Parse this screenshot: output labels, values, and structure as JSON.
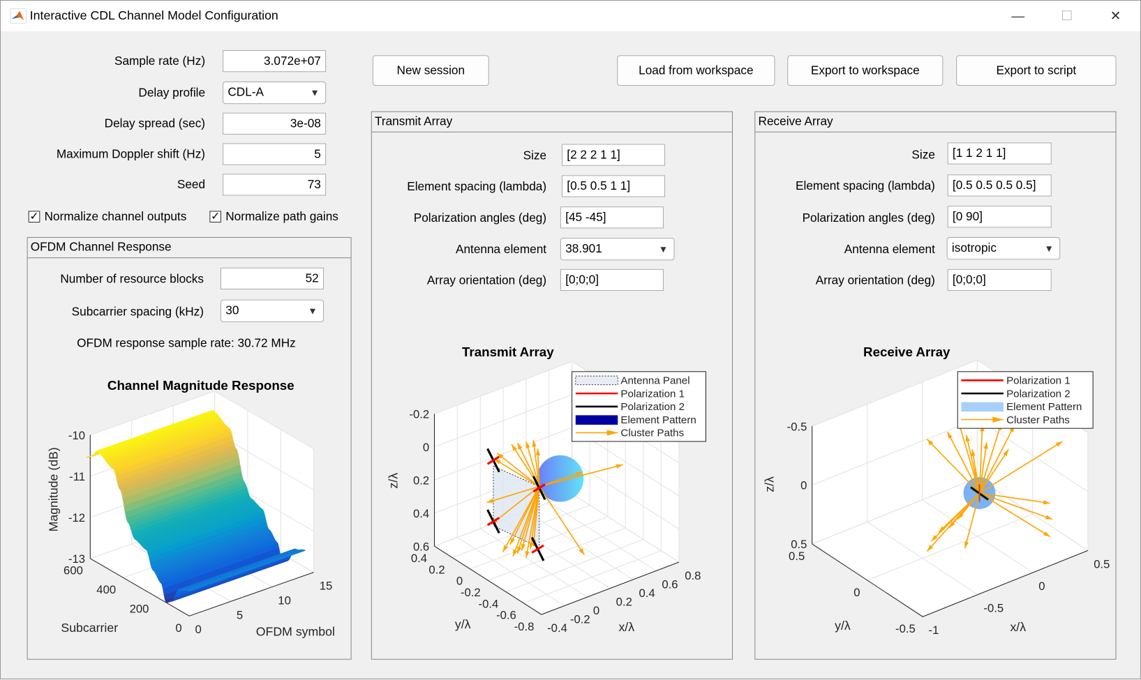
{
  "window": {
    "title": "Interactive CDL Channel Model Configuration",
    "minimize": "—",
    "maximize": "☐",
    "close": "✕"
  },
  "params": {
    "sample_rate": {
      "label": "Sample rate (Hz)",
      "value": "3.072e+07"
    },
    "delay_profile": {
      "label": "Delay profile",
      "value": "CDL-A"
    },
    "delay_spread": {
      "label": "Delay spread (sec)",
      "value": "3e-08"
    },
    "doppler": {
      "label": "Maximum Doppler shift (Hz)",
      "value": "5"
    },
    "seed": {
      "label": "Seed",
      "value": "73"
    },
    "normalize_outputs": {
      "label": "Normalize channel outputs",
      "checked": true
    },
    "normalize_gains": {
      "label": "Normalize path gains",
      "checked": true
    }
  },
  "buttons": {
    "new_session": "New session",
    "load": "Load from workspace",
    "export_ws": "Export to workspace",
    "export_script": "Export to script"
  },
  "ofdm": {
    "title": "OFDM Channel Response",
    "nrb": {
      "label": "Number of resource blocks",
      "value": "52"
    },
    "scs": {
      "label": "Subcarrier spacing (kHz)",
      "value": "30"
    },
    "rate_text": "OFDM response sample rate: 30.72 MHz"
  },
  "tx": {
    "title": "Transmit Array",
    "size": {
      "label": "Size",
      "value": "[2 2 2 1 1]"
    },
    "spacing": {
      "label": "Element spacing (lambda)",
      "value": "[0.5 0.5 1 1]"
    },
    "pol": {
      "label": "Polarization angles (deg)",
      "value": "[45 -45]"
    },
    "element": {
      "label": "Antenna element",
      "value": "38.901"
    },
    "orient": {
      "label": "Array orientation (deg)",
      "value": "[0;0;0]"
    }
  },
  "rx": {
    "title": "Receive Array",
    "size": {
      "label": "Size",
      "value": "[1 1 2 1 1]"
    },
    "spacing": {
      "label": "Element spacing (lambda)",
      "value": "[0.5 0.5 0.5 0.5]"
    },
    "pol": {
      "label": "Polarization angles (deg)",
      "value": "[0 90]"
    },
    "element": {
      "label": "Antenna element",
      "value": "isotropic"
    },
    "orient": {
      "label": "Array orientation (deg)",
      "value": "[0;0;0]"
    }
  },
  "chart_data": [
    {
      "type": "surface",
      "title": "Channel Magnitude Response",
      "xlabel": "OFDM symbol",
      "ylabel": "Subcarrier",
      "zlabel": "Magnitude (dB)",
      "xticks": [
        "0",
        "5",
        "10",
        "15"
      ],
      "yticks": [
        "0",
        "200",
        "400",
        "600"
      ],
      "zticks": [
        "-10",
        "-11",
        "-12",
        "-13"
      ],
      "xlim": [
        0,
        15
      ],
      "ylim": [
        0,
        624
      ],
      "zlim": [
        -13,
        -10
      ],
      "colormap": "parula",
      "profile_subcarrier": [
        0,
        60,
        110,
        140,
        170,
        220,
        260,
        330,
        370,
        420,
        460,
        560,
        590,
        624
      ],
      "profile_magnitude": [
        -12.4,
        -12.5,
        -12.9,
        -13.0,
        -12.6,
        -12.4,
        -12.0,
        -11.9,
        -11.6,
        -10.9,
        -10.5,
        -10.3,
        -10.5,
        -10.6
      ]
    },
    {
      "type": "3d-array",
      "title": "Transmit Array",
      "xlabel": "x/λ",
      "ylabel": "y/λ",
      "zlabel": "z/λ",
      "xticks": [
        "-0.4",
        "-0.2",
        "0",
        "0.2",
        "0.4",
        "0.6",
        "0.8"
      ],
      "yticks": [
        "0.4",
        "0.2",
        "0",
        "-0.2",
        "-0.4",
        "-0.6",
        "-0.8"
      ],
      "zticks": [
        "0.6",
        "0.4",
        "0.2",
        "0",
        "-0.2"
      ],
      "legend": [
        "Antenna Panel",
        "Polarization 1",
        "Polarization 2",
        "Element Pattern",
        "Cluster Paths"
      ],
      "legend_position": "top-right"
    },
    {
      "type": "3d-array",
      "title": "Receive Array",
      "xlabel": "x/λ",
      "ylabel": "y/λ",
      "zlabel": "z/λ",
      "xticks": [
        "-1",
        "-0.5",
        "0",
        "0.5"
      ],
      "yticks": [
        "0.5",
        "0",
        "-0.5"
      ],
      "zticks": [
        "0.5",
        "0",
        "-0.5"
      ],
      "legend": [
        "Polarization 1",
        "Polarization 2",
        "Element Pattern",
        "Cluster Paths"
      ],
      "legend_position": "top-right"
    }
  ],
  "colors": {
    "pol1": "#ff0000",
    "pol2": "#000000",
    "paths": "#ffa500",
    "tx_pattern": "#0000a0",
    "rx_pattern": "#a8cff8"
  }
}
